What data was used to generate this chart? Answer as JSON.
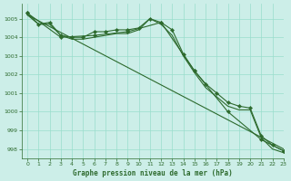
{
  "title": "Graphe pression niveau de la mer (hPa)",
  "bg_color": "#cceee8",
  "grid_color": "#99ddcc",
  "line_color": "#2d6a2d",
  "xlim": [
    -0.5,
    23
  ],
  "ylim": [
    997.5,
    1005.8
  ],
  "yticks": [
    998,
    999,
    1000,
    1001,
    1002,
    1003,
    1004,
    1005
  ],
  "xticks": [
    0,
    1,
    2,
    3,
    4,
    5,
    6,
    7,
    8,
    9,
    10,
    11,
    12,
    13,
    14,
    15,
    16,
    17,
    18,
    19,
    20,
    21,
    22,
    23
  ],
  "series": [
    {
      "x": [
        0,
        1,
        2,
        3,
        4,
        5,
        6,
        7,
        8,
        9,
        10,
        11,
        12,
        13,
        14,
        15,
        16,
        17,
        18,
        19,
        20,
        21,
        22,
        23
      ],
      "y": [
        1005.3,
        1004.7,
        1004.8,
        1004.1,
        1004.0,
        1004.0,
        1004.3,
        1004.3,
        1004.4,
        1004.4,
        1004.5,
        1005.0,
        1004.8,
        1004.4,
        1003.1,
        1002.2,
        1001.5,
        1001.0,
        1000.5,
        1000.3,
        1000.2,
        998.7,
        998.2,
        997.9
      ],
      "marker": true
    },
    {
      "x": [
        0,
        1,
        2,
        3,
        4,
        5,
        6,
        7,
        8,
        9,
        10,
        11,
        12,
        13,
        14,
        15,
        16,
        17,
        18,
        19,
        20,
        21,
        22,
        23
      ],
      "y": [
        1005.2,
        1004.7,
        1004.7,
        1004.1,
        1003.9,
        1003.9,
        1004.0,
        1004.1,
        1004.2,
        1004.2,
        1004.4,
        1005.0,
        1004.7,
        1004.1,
        1003.0,
        1002.1,
        1001.3,
        1000.8,
        1000.3,
        1000.1,
        1000.1,
        998.6,
        998.0,
        997.8
      ],
      "marker": false
    },
    {
      "x": [
        0,
        3,
        6,
        9,
        12,
        15,
        18,
        21,
        23
      ],
      "y": [
        1005.3,
        1004.0,
        1004.1,
        1004.3,
        1004.8,
        1002.2,
        1000.0,
        998.5,
        997.9
      ],
      "marker": true
    },
    {
      "x": [
        0,
        23
      ],
      "y": [
        1005.2,
        998.0
      ],
      "marker": false
    }
  ]
}
